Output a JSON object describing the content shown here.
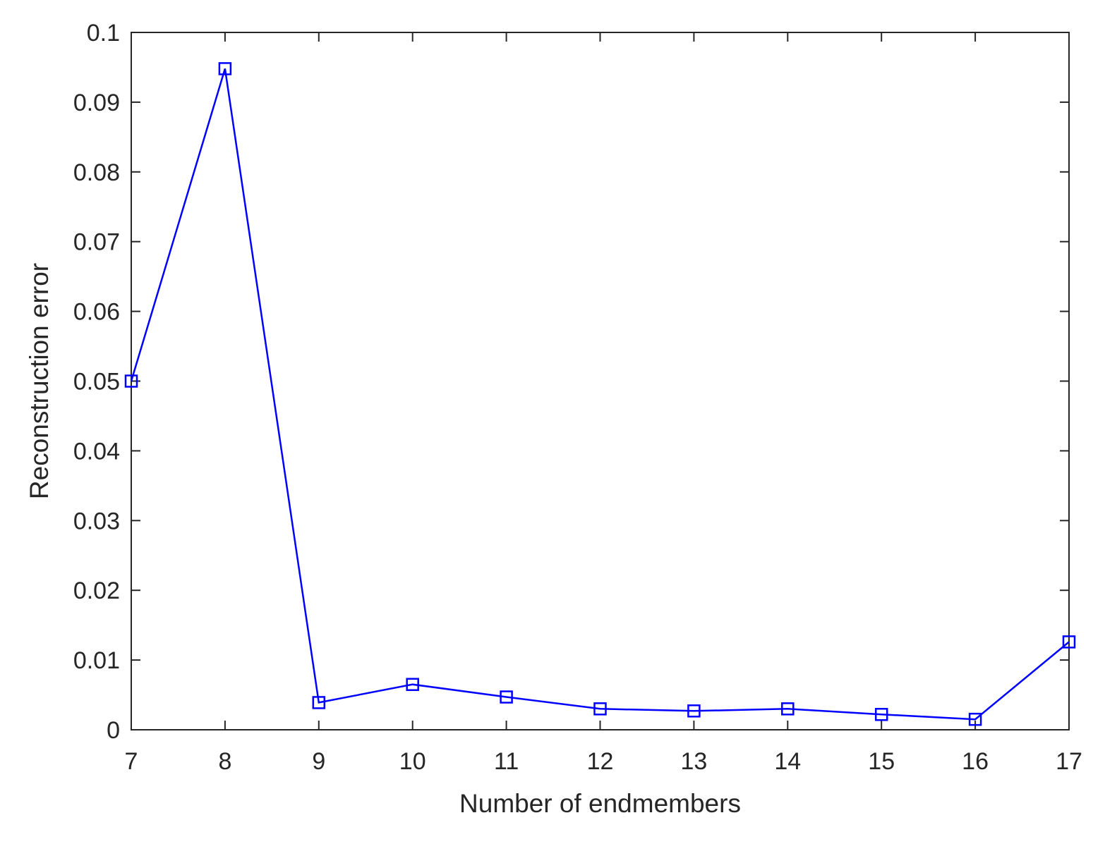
{
  "chart_data": {
    "type": "line",
    "title": "",
    "xlabel": "Number of endmembers",
    "ylabel": "Reconstruction error",
    "xlim": [
      7,
      17
    ],
    "ylim": [
      0,
      0.1
    ],
    "xticks": [
      "7",
      "8",
      "9",
      "10",
      "11",
      "12",
      "13",
      "14",
      "15",
      "16",
      "17"
    ],
    "yticks": [
      "0",
      "0.01",
      "0.02",
      "0.03",
      "0.04",
      "0.05",
      "0.06",
      "0.07",
      "0.08",
      "0.09",
      "0.1"
    ],
    "grid": false,
    "legend": false,
    "series": [
      {
        "color": "#0000ff",
        "marker": "square",
        "x": [
          7,
          8,
          9,
          10,
          11,
          12,
          13,
          14,
          15,
          16,
          17
        ],
        "y": [
          0.05,
          0.0948,
          0.0039,
          0.0065,
          0.0047,
          0.003,
          0.0027,
          0.003,
          0.0022,
          0.0015,
          0.0126
        ]
      }
    ]
  }
}
